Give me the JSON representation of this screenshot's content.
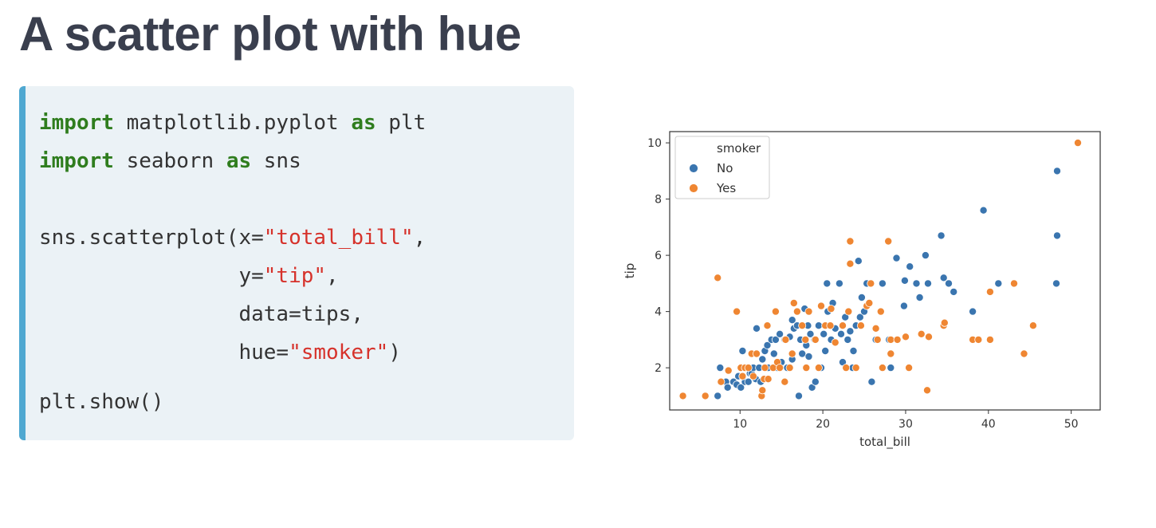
{
  "slide": {
    "title": "A scatter plot with hue"
  },
  "code": {
    "line1": {
      "kw1": "import",
      "t1": " matplotlib.pyplot ",
      "kw2": "as",
      "t2": " plt"
    },
    "line2": {
      "kw1": "import",
      "t1": " seaborn ",
      "kw2": "as",
      "t2": " sns"
    },
    "line3": {
      "t1": "sns.scatterplot(x=",
      "s1": "\"total_bill\"",
      "t2": ","
    },
    "line4": {
      "t1": "                y=",
      "s1": "\"tip\"",
      "t2": ","
    },
    "line5": {
      "t1": "                data=tips,"
    },
    "line6": {
      "t1": "                hue=",
      "s1": "\"smoker\"",
      "t2": ")"
    },
    "line7": {
      "t1": "plt.show()"
    }
  },
  "chart_data": {
    "type": "scatter",
    "title": "",
    "xlabel": "total_bill",
    "ylabel": "tip",
    "xlim": [
      1.5,
      53.5
    ],
    "ylim": [
      0.5,
      10.4
    ],
    "xticks": [
      10,
      20,
      30,
      40,
      50
    ],
    "yticks": [
      2,
      4,
      6,
      8,
      10
    ],
    "grid": false,
    "legend": {
      "title": "smoker",
      "placement": "top-left"
    },
    "series": [
      {
        "name": "No",
        "color": "#3a75af",
        "points": [
          [
            7.3,
            1.0
          ],
          [
            7.6,
            2.0
          ],
          [
            8.3,
            1.5
          ],
          [
            8.5,
            1.3
          ],
          [
            9.2,
            1.5
          ],
          [
            9.6,
            1.4
          ],
          [
            9.8,
            1.7
          ],
          [
            10.1,
            1.3
          ],
          [
            10.3,
            1.7
          ],
          [
            10.3,
            2.6
          ],
          [
            10.6,
            1.5
          ],
          [
            11.0,
            1.5
          ],
          [
            11.2,
            1.8
          ],
          [
            11.4,
            1.8
          ],
          [
            11.6,
            2.0
          ],
          [
            11.9,
            1.6
          ],
          [
            12.0,
            3.4
          ],
          [
            12.3,
            2.0
          ],
          [
            12.5,
            1.5
          ],
          [
            12.7,
            2.3
          ],
          [
            13.0,
            2.6
          ],
          [
            13.3,
            2.8
          ],
          [
            13.4,
            2.0
          ],
          [
            13.8,
            3.0
          ],
          [
            14.1,
            2.5
          ],
          [
            14.3,
            3.0
          ],
          [
            14.5,
            2.0
          ],
          [
            14.8,
            3.2
          ],
          [
            15.0,
            2.2
          ],
          [
            15.4,
            3.0
          ],
          [
            15.7,
            2.0
          ],
          [
            16.0,
            3.1
          ],
          [
            16.3,
            2.3
          ],
          [
            16.3,
            3.7
          ],
          [
            16.5,
            3.4
          ],
          [
            16.9,
            3.5
          ],
          [
            17.1,
            1.0
          ],
          [
            17.3,
            3.0
          ],
          [
            17.5,
            2.5
          ],
          [
            17.8,
            4.1
          ],
          [
            18.0,
            2.8
          ],
          [
            18.2,
            3.5
          ],
          [
            18.3,
            2.4
          ],
          [
            18.5,
            3.2
          ],
          [
            18.7,
            1.3
          ],
          [
            19.0,
            3.0
          ],
          [
            19.1,
            1.5
          ],
          [
            19.5,
            3.5
          ],
          [
            19.8,
            2.0
          ],
          [
            20.1,
            3.2
          ],
          [
            20.3,
            2.6
          ],
          [
            20.5,
            5.0
          ],
          [
            20.6,
            4.0
          ],
          [
            20.9,
            3.5
          ],
          [
            21.0,
            3.0
          ],
          [
            21.2,
            4.3
          ],
          [
            21.5,
            3.4
          ],
          [
            22.0,
            5.0
          ],
          [
            22.2,
            3.2
          ],
          [
            22.4,
            2.2
          ],
          [
            22.7,
            3.8
          ],
          [
            23.0,
            3.0
          ],
          [
            23.3,
            3.3
          ],
          [
            23.6,
            2.0
          ],
          [
            23.7,
            2.6
          ],
          [
            24.0,
            3.5
          ],
          [
            24.3,
            5.8
          ],
          [
            24.5,
            3.8
          ],
          [
            24.7,
            4.5
          ],
          [
            25.0,
            4.0
          ],
          [
            25.3,
            5.0
          ],
          [
            25.9,
            1.5
          ],
          [
            26.4,
            3.0
          ],
          [
            27.2,
            5.0
          ],
          [
            28.0,
            3.0
          ],
          [
            28.2,
            2.0
          ],
          [
            28.9,
            5.9
          ],
          [
            29.8,
            4.2
          ],
          [
            29.9,
            5.1
          ],
          [
            30.5,
            5.6
          ],
          [
            31.3,
            5.0
          ],
          [
            31.7,
            4.5
          ],
          [
            32.4,
            6.0
          ],
          [
            32.7,
            5.0
          ],
          [
            34.3,
            6.7
          ],
          [
            34.6,
            5.2
          ],
          [
            35.2,
            5.0
          ],
          [
            35.8,
            4.7
          ],
          [
            38.1,
            4.0
          ],
          [
            39.4,
            7.6
          ],
          [
            41.2,
            5.0
          ],
          [
            48.2,
            5.0
          ],
          [
            48.3,
            6.7
          ],
          [
            48.3,
            9.0
          ]
        ]
      },
      {
        "name": "Yes",
        "color": "#ef8632",
        "points": [
          [
            3.1,
            1.0
          ],
          [
            5.8,
            1.0
          ],
          [
            7.3,
            5.2
          ],
          [
            7.7,
            1.5
          ],
          [
            8.6,
            1.9
          ],
          [
            9.6,
            4.0
          ],
          [
            10.1,
            2.0
          ],
          [
            10.3,
            1.7
          ],
          [
            10.6,
            2.0
          ],
          [
            11.0,
            2.0
          ],
          [
            11.4,
            2.5
          ],
          [
            11.6,
            1.7
          ],
          [
            12.0,
            2.5
          ],
          [
            12.6,
            1.0
          ],
          [
            12.7,
            1.2
          ],
          [
            12.9,
            1.6
          ],
          [
            13.0,
            2.0
          ],
          [
            13.3,
            3.5
          ],
          [
            13.4,
            1.6
          ],
          [
            14.0,
            2.0
          ],
          [
            14.3,
            4.0
          ],
          [
            14.5,
            2.2
          ],
          [
            14.8,
            2.0
          ],
          [
            15.4,
            1.5
          ],
          [
            15.5,
            3.0
          ],
          [
            16.0,
            2.0
          ],
          [
            16.3,
            2.5
          ],
          [
            16.5,
            4.3
          ],
          [
            16.9,
            4.0
          ],
          [
            17.5,
            3.5
          ],
          [
            17.9,
            3.0
          ],
          [
            18.0,
            2.0
          ],
          [
            18.3,
            4.0
          ],
          [
            19.1,
            3.0
          ],
          [
            19.5,
            2.0
          ],
          [
            19.8,
            4.2
          ],
          [
            20.3,
            3.5
          ],
          [
            20.9,
            3.5
          ],
          [
            21.0,
            4.1
          ],
          [
            21.5,
            2.9
          ],
          [
            22.4,
            3.5
          ],
          [
            22.8,
            2.0
          ],
          [
            23.1,
            4.0
          ],
          [
            23.3,
            6.5
          ],
          [
            23.3,
            5.7
          ],
          [
            24.0,
            2.0
          ],
          [
            24.6,
            3.5
          ],
          [
            25.3,
            4.2
          ],
          [
            25.6,
            4.3
          ],
          [
            25.8,
            5.0
          ],
          [
            26.4,
            3.4
          ],
          [
            26.6,
            3.0
          ],
          [
            27.0,
            4.0
          ],
          [
            27.2,
            2.0
          ],
          [
            27.9,
            6.5
          ],
          [
            28.2,
            3.0
          ],
          [
            28.2,
            2.5
          ],
          [
            29.0,
            3.0
          ],
          [
            30.0,
            3.1
          ],
          [
            30.4,
            2.0
          ],
          [
            31.9,
            3.2
          ],
          [
            32.6,
            1.2
          ],
          [
            32.8,
            3.1
          ],
          [
            34.6,
            3.5
          ],
          [
            34.7,
            3.6
          ],
          [
            38.1,
            3.0
          ],
          [
            38.8,
            3.0
          ],
          [
            40.2,
            3.0
          ],
          [
            40.2,
            4.7
          ],
          [
            43.1,
            5.0
          ],
          [
            44.3,
            2.5
          ],
          [
            45.4,
            3.5
          ],
          [
            50.8,
            10.0
          ]
        ]
      }
    ]
  }
}
